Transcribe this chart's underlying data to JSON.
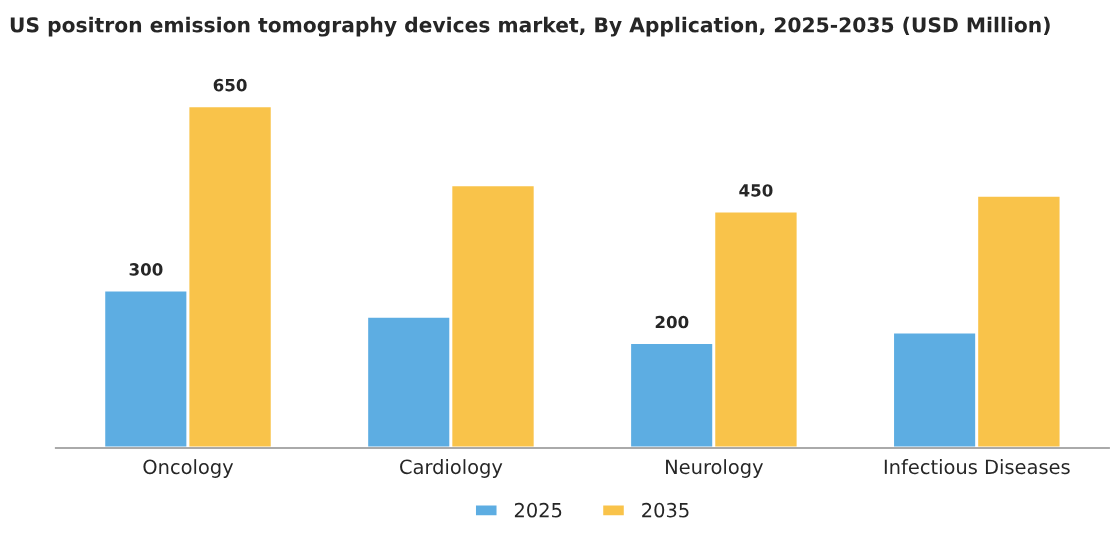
{
  "chart_data": {
    "type": "bar",
    "title": "US positron emission tomography devices market, By Application, 2025-2035 (USD Million)",
    "categories": [
      "Oncology",
      "Cardiology",
      "Neurology",
      "Infectious Diseases"
    ],
    "series": [
      {
        "name": "2025",
        "color": "#5dade2",
        "values": [
          300,
          250,
          200,
          220
        ],
        "value_labels": [
          "300",
          null,
          "200",
          null
        ]
      },
      {
        "name": "2035",
        "color": "#f9c34a",
        "values": [
          650,
          500,
          450,
          480
        ],
        "value_labels": [
          "650",
          null,
          "450",
          null
        ]
      }
    ],
    "legend": "bottom",
    "grid": false
  }
}
